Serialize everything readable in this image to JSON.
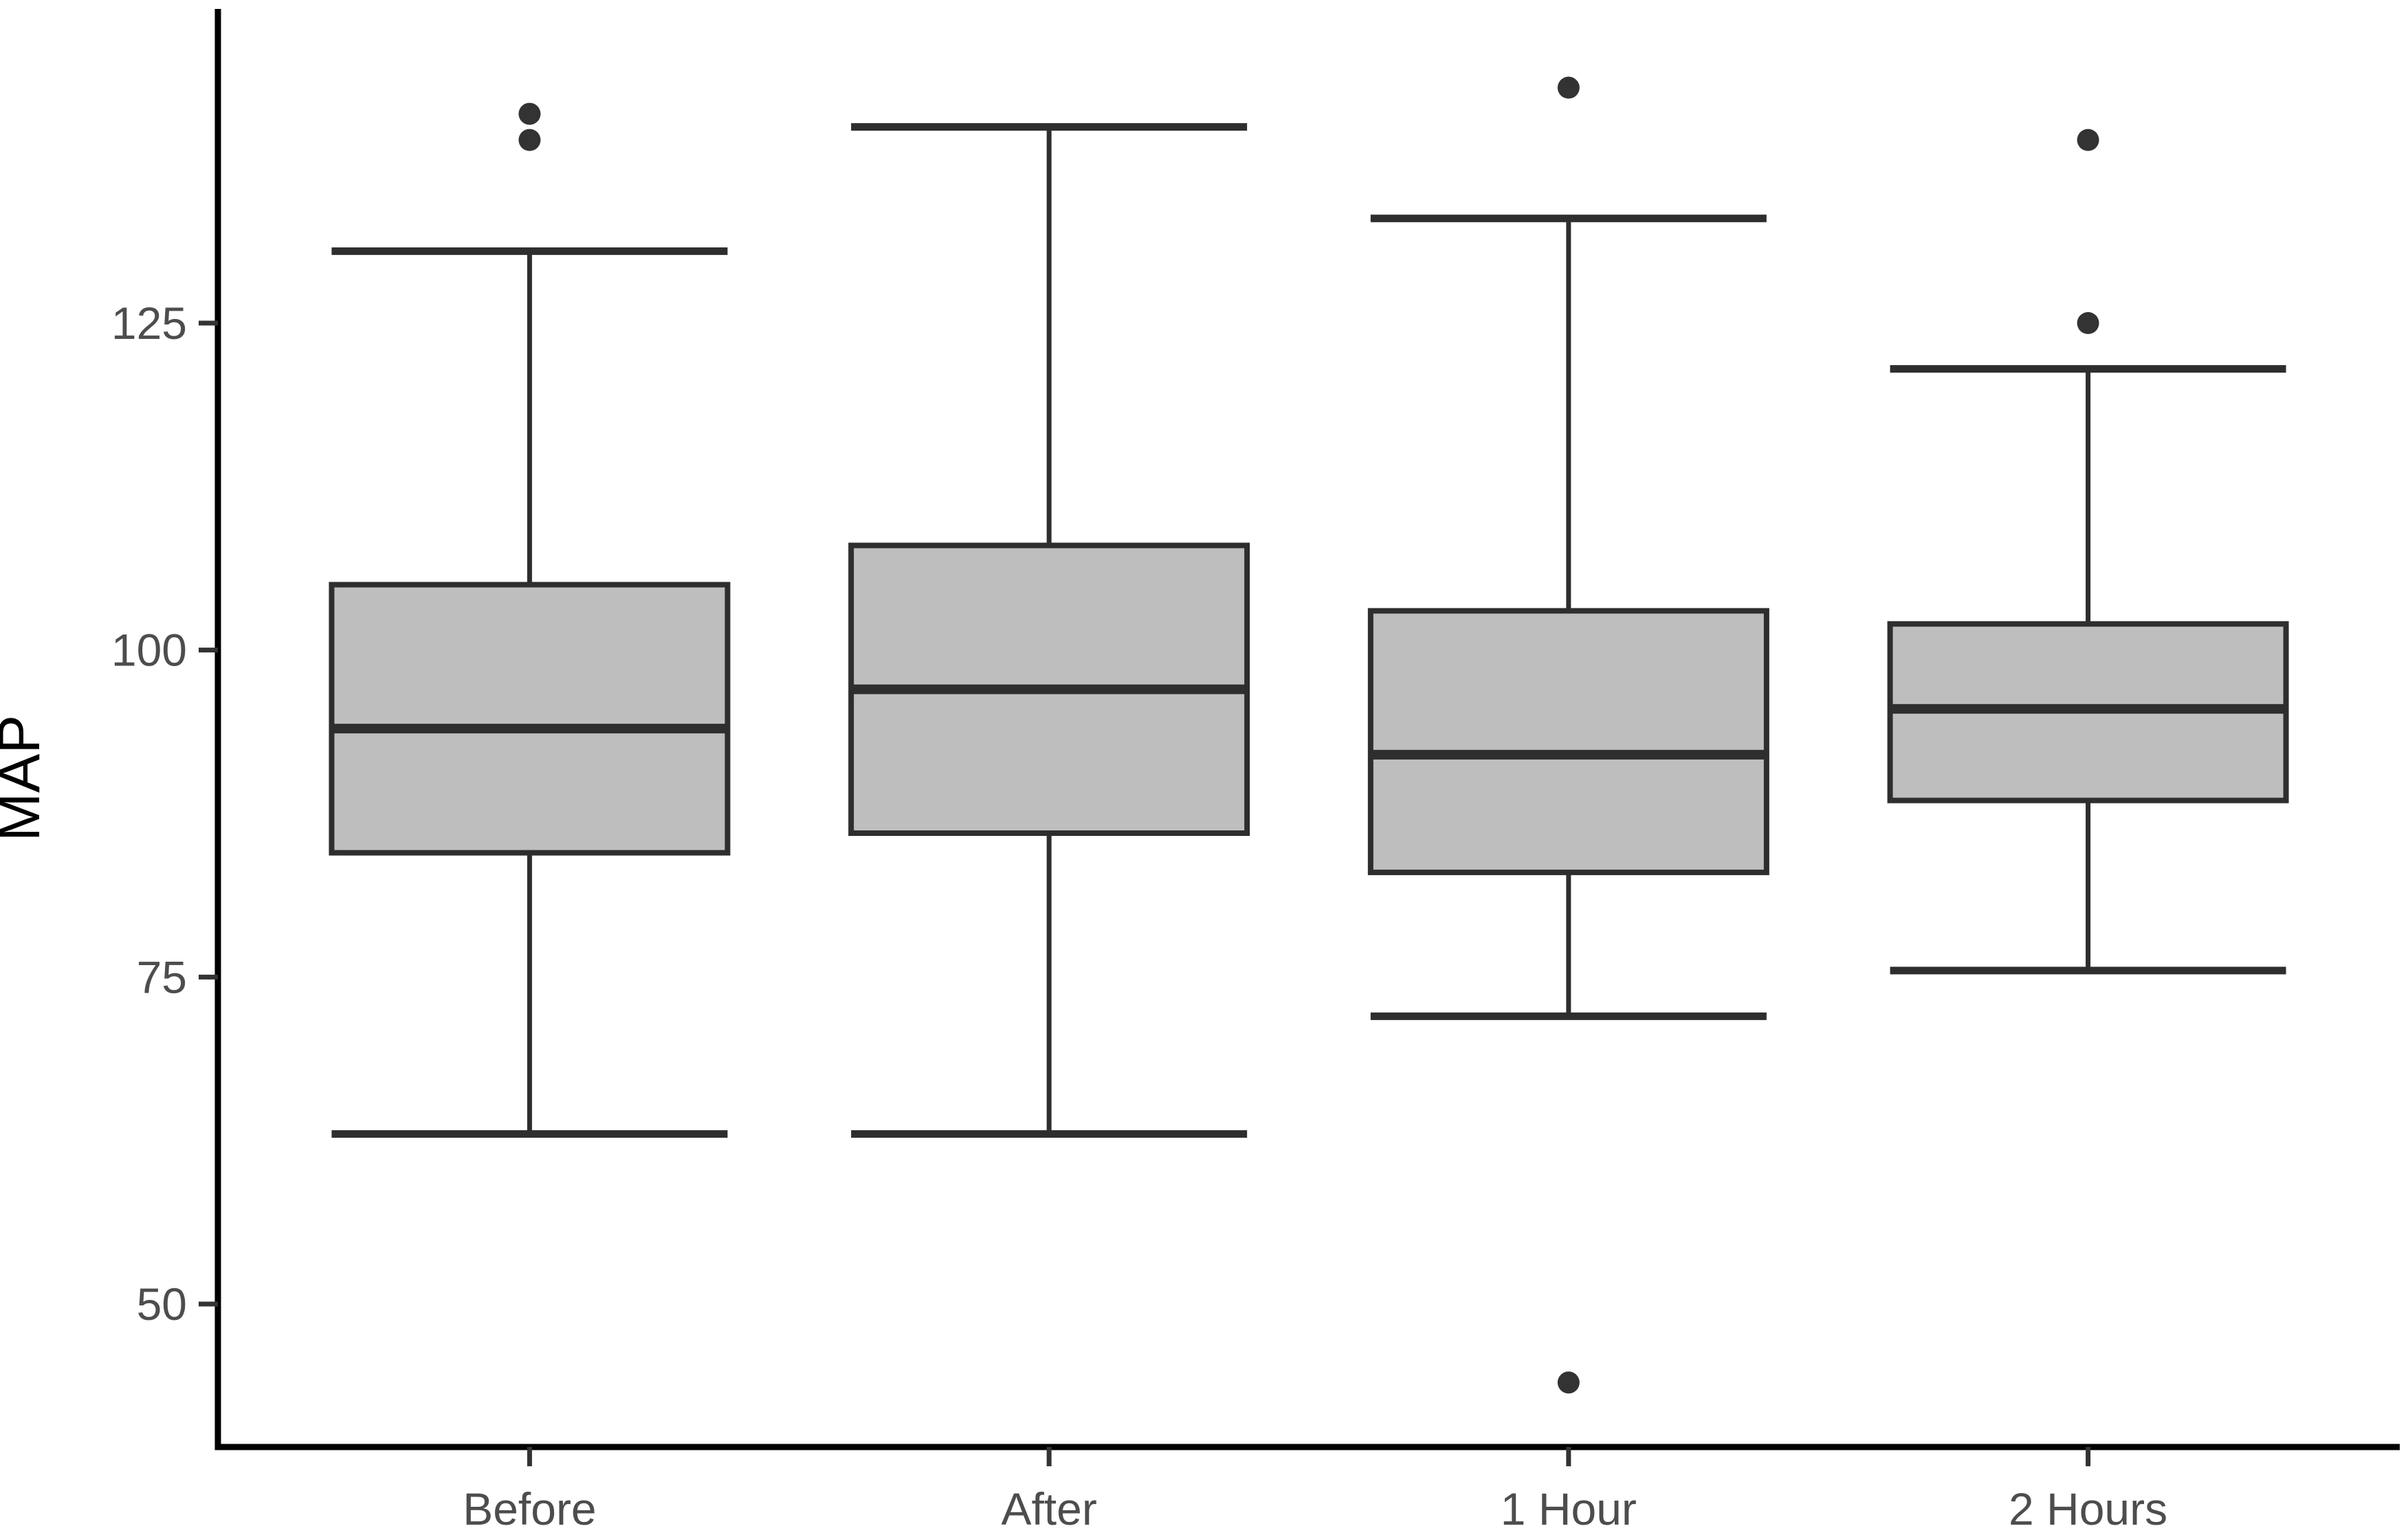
{
  "chart_data": {
    "type": "boxplot",
    "title": "",
    "xlabel": "",
    "ylabel": "MAP",
    "categories": [
      "Before",
      "After",
      "1 Hour",
      "2 Hours"
    ],
    "y_axis": {
      "ticks": [
        125,
        100,
        75,
        50
      ],
      "range_shown": [
        39,
        149
      ],
      "grid": "off"
    },
    "legend": "none",
    "series": [
      {
        "category": "Before",
        "whisker_low": 63,
        "q1": 84.5,
        "median": 94,
        "q3": 105,
        "whisker_high": 130.5,
        "outliers": [
          139,
          141
        ]
      },
      {
        "category": "After",
        "whisker_low": 63,
        "q1": 86,
        "median": 97,
        "q3": 108,
        "whisker_high": 140,
        "outliers": []
      },
      {
        "category": "1 Hour",
        "whisker_low": 72,
        "q1": 83,
        "median": 92,
        "q3": 103,
        "whisker_high": 133,
        "outliers": [
          143,
          44
        ]
      },
      {
        "category": "2 Hours",
        "whisker_low": 75.5,
        "q1": 88.5,
        "median": 95.5,
        "q3": 102,
        "whisker_high": 121.5,
        "outliers": [
          139,
          125
        ]
      }
    ],
    "style": {
      "background": "#ffffff",
      "box_fill": "#bebebe",
      "box_stroke": "#2e2e2e",
      "median_color": "#2e2e2e",
      "whisker_color": "#2e2e2e",
      "outlier_color": "#333333",
      "axis_color": "#000000",
      "tick_color": "#333333",
      "tick_label_color": "#4d4d4d",
      "axis_title_color": "#000000"
    }
  }
}
